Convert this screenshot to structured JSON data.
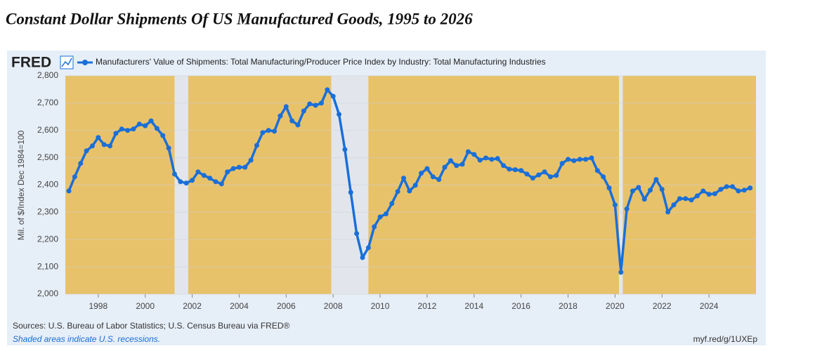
{
  "chart_data": {
    "type": "line",
    "title": "Constant Dollar Shipments Of US Manufactured Goods, 1995 to 2026",
    "logo": "FRED",
    "y_label": "Mil. of $/Index Dec 1984=100",
    "source": "Sources: U.S. Bureau of Labor Statistics; U.S. Census Bureau via FRED®",
    "note": "Shaded areas indicate U.S. recessions.",
    "link": "myf.red/g/1UXEp",
    "xlim": [
      1996.6,
      2026.0
    ],
    "xticks": [
      1998,
      2000,
      2002,
      2004,
      2006,
      2008,
      2010,
      2012,
      2014,
      2016,
      2018,
      2020,
      2022,
      2024
    ],
    "ylim": [
      2000,
      2800
    ],
    "yticks": [
      {
        "value": 2000,
        "label": "2,000"
      },
      {
        "value": 2100,
        "label": "2,100"
      },
      {
        "value": 2200,
        "label": "2,200"
      },
      {
        "value": 2300,
        "label": "2,300"
      },
      {
        "value": 2400,
        "label": "2,400"
      },
      {
        "value": 2500,
        "label": "2,500"
      },
      {
        "value": 2600,
        "label": "2,600"
      },
      {
        "value": 2700,
        "label": "2,700"
      },
      {
        "value": 2800,
        "label": "2,800"
      }
    ],
    "grid": true,
    "recessions": [
      [
        2001.25,
        2001.83
      ],
      [
        2007.92,
        2009.5
      ],
      [
        2020.17,
        2020.33
      ]
    ],
    "x": [
      1996.75,
      1997.0,
      1997.25,
      1997.5,
      1997.75,
      1998.0,
      1998.25,
      1998.5,
      1998.75,
      1999.0,
      1999.25,
      1999.5,
      1999.75,
      2000.0,
      2000.25,
      2000.5,
      2000.75,
      2001.0,
      2001.25,
      2001.5,
      2001.75,
      2002.0,
      2002.25,
      2002.5,
      2002.75,
      2003.0,
      2003.25,
      2003.5,
      2003.75,
      2004.0,
      2004.25,
      2004.5,
      2004.75,
      2005.0,
      2005.25,
      2005.5,
      2005.75,
      2006.0,
      2006.25,
      2006.5,
      2006.75,
      2007.0,
      2007.25,
      2007.5,
      2007.75,
      2008.0,
      2008.25,
      2008.5,
      2008.75,
      2009.0,
      2009.25,
      2009.5,
      2009.75,
      2010.0,
      2010.25,
      2010.5,
      2010.75,
      2011.0,
      2011.25,
      2011.5,
      2011.75,
      2012.0,
      2012.25,
      2012.5,
      2012.75,
      2013.0,
      2013.25,
      2013.5,
      2013.75,
      2014.0,
      2014.25,
      2014.5,
      2014.75,
      2015.0,
      2015.25,
      2015.5,
      2015.75,
      2016.0,
      2016.25,
      2016.5,
      2016.75,
      2017.0,
      2017.25,
      2017.5,
      2017.75,
      2018.0,
      2018.25,
      2018.5,
      2018.75,
      2019.0,
      2019.25,
      2019.5,
      2019.75,
      2020.0,
      2020.25,
      2020.5,
      2020.75,
      2021.0,
      2021.25,
      2021.5,
      2021.75,
      2022.0,
      2022.25,
      2022.5,
      2022.75,
      2023.0,
      2023.25,
      2023.5,
      2023.75,
      2024.0,
      2024.25,
      2024.5,
      2024.75,
      2025.0,
      2025.25,
      2025.5,
      2025.75
    ],
    "series": [
      {
        "name": "Manufacturers' Value of Shipments: Total Manufacturing/Producer Price Index by Industry: Total Manufacturing Industries",
        "color": "#1a6fd8",
        "values": [
          2378,
          2430,
          2479,
          2525,
          2543,
          2574,
          2548,
          2543,
          2589,
          2605,
          2600,
          2605,
          2623,
          2617,
          2635,
          2607,
          2581,
          2535,
          2440,
          2412,
          2407,
          2417,
          2448,
          2435,
          2425,
          2412,
          2404,
          2448,
          2460,
          2465,
          2465,
          2491,
          2545,
          2592,
          2600,
          2597,
          2653,
          2687,
          2635,
          2620,
          2671,
          2697,
          2692,
          2700,
          2749,
          2725,
          2659,
          2530,
          2373,
          2222,
          2134,
          2170,
          2247,
          2283,
          2294,
          2332,
          2376,
          2425,
          2378,
          2399,
          2443,
          2460,
          2430,
          2420,
          2465,
          2489,
          2471,
          2476,
          2522,
          2512,
          2491,
          2499,
          2494,
          2497,
          2471,
          2458,
          2456,
          2453,
          2440,
          2425,
          2437,
          2448,
          2430,
          2435,
          2479,
          2494,
          2489,
          2494,
          2494,
          2499,
          2453,
          2430,
          2389,
          2327,
          2080,
          2312,
          2378,
          2391,
          2348,
          2381,
          2420,
          2384,
          2301,
          2327,
          2350,
          2350,
          2345,
          2360,
          2378,
          2366,
          2368,
          2384,
          2394,
          2394,
          2378,
          2381,
          2389
        ]
      }
    ]
  }
}
